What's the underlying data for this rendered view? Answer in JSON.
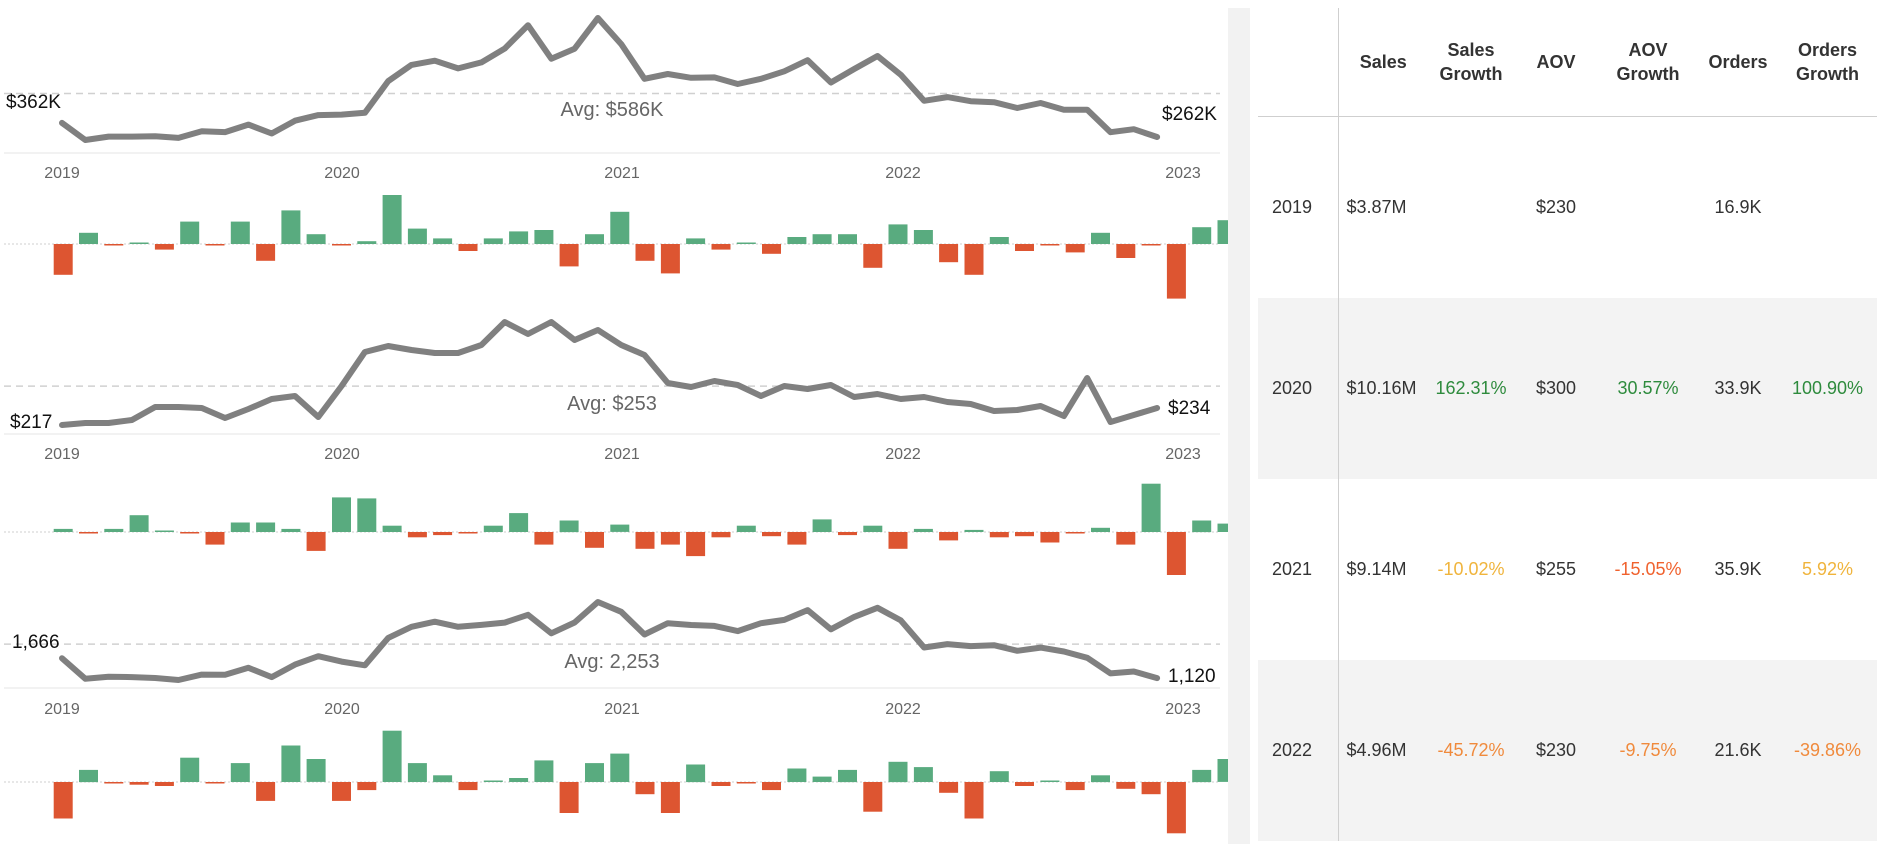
{
  "colors": {
    "line": "#808080",
    "positive_bar": "#59ab7f",
    "negative_bar": "#dd5531",
    "avg_line": "#d0d0d0"
  },
  "chart_data": [
    {
      "type": "line",
      "metric": "Sales",
      "x": [
        "2019-01",
        "2019-02",
        "2019-03",
        "2019-04",
        "2019-05",
        "2019-06",
        "2019-07",
        "2019-08",
        "2019-09",
        "2019-10",
        "2019-11",
        "2019-12",
        "2020-01",
        "2020-02",
        "2020-03",
        "2020-04",
        "2020-05",
        "2020-06",
        "2020-07",
        "2020-08",
        "2020-09",
        "2020-10",
        "2020-11",
        "2020-12",
        "2021-01",
        "2021-02",
        "2021-03",
        "2021-04",
        "2021-05",
        "2021-06",
        "2021-07",
        "2021-08",
        "2021-09",
        "2021-10",
        "2021-11",
        "2021-12",
        "2022-01",
        "2022-02",
        "2022-03",
        "2022-04",
        "2022-05",
        "2022-06",
        "2022-07",
        "2022-08",
        "2022-09",
        "2022-10",
        "2022-11",
        "2022-12"
      ],
      "values": [
        362,
        241,
        265,
        265,
        268,
        256,
        303,
        297,
        350,
        287,
        377,
        417,
        420,
        433,
        657,
        771,
        801,
        746,
        789,
        886,
        1051,
        815,
        885,
        1102,
        918,
        673,
        707,
        680,
        683,
        636,
        673,
        726,
        804,
        647,
        742,
        834,
        701,
        518,
        544,
        515,
        508,
        467,
        502,
        454,
        455,
        296,
        317,
        262
      ],
      "x_ticks": [
        "2019",
        "2020",
        "2021",
        "2022",
        "2023"
      ],
      "avg_label": "Avg: $586K",
      "start_label": "$362K",
      "end_label": "$262K"
    },
    {
      "type": "bar",
      "metric": "Sales month-over-month change",
      "values": [
        -2.2,
        0.8,
        -0.1,
        0.1,
        -0.4,
        1.6,
        -0.1,
        1.6,
        -1.2,
        2.4,
        0.7,
        -0.1,
        0.2,
        3.5,
        1.1,
        0.4,
        -0.5,
        0.4,
        0.9,
        1.0,
        -1.6,
        0.7,
        2.3,
        -1.2,
        -2.1,
        0.4,
        -0.4,
        0.1,
        -0.7,
        0.5,
        0.7,
        0.7,
        -1.7,
        1.4,
        1.0,
        -1.3,
        -2.2,
        0.5,
        -0.5,
        -0.1,
        -0.6,
        0.8,
        -1.0,
        -0.1,
        -3.9,
        1.2,
        1.7
      ]
    },
    {
      "type": "line",
      "metric": "AOV",
      "x": [
        "2019-01",
        "2019-02",
        "2019-03",
        "2019-04",
        "2019-05",
        "2019-06",
        "2019-07",
        "2019-08",
        "2019-09",
        "2019-10",
        "2019-11",
        "2019-12",
        "2020-01",
        "2020-02",
        "2020-03",
        "2020-04",
        "2020-05",
        "2020-06",
        "2020-07",
        "2020-08",
        "2020-09",
        "2020-10",
        "2020-11",
        "2020-12",
        "2021-01",
        "2021-02",
        "2021-03",
        "2021-04",
        "2021-05",
        "2021-06",
        "2021-07",
        "2021-08",
        "2021-09",
        "2021-10",
        "2021-11",
        "2021-12",
        "2022-01",
        "2022-02",
        "2022-03",
        "2022-04",
        "2022-05",
        "2022-06",
        "2022-07",
        "2022-08",
        "2022-09",
        "2022-10",
        "2022-11",
        "2022-12"
      ],
      "values": [
        217,
        219,
        219,
        222,
        235,
        235,
        234,
        224,
        233,
        243,
        246,
        225,
        256,
        290,
        296,
        292,
        289,
        289,
        297,
        320,
        308,
        320,
        302,
        312,
        297,
        287,
        259,
        255,
        261,
        257,
        246,
        256,
        253,
        257,
        245,
        248,
        243,
        245,
        240,
        238,
        231,
        232,
        236,
        226,
        264,
        220,
        227,
        234
      ],
      "x_ticks": [
        "2019",
        "2020",
        "2021",
        "2022",
        "2023"
      ],
      "avg_label": "Avg: $253",
      "start_label": "$217",
      "end_label": "$234"
    },
    {
      "type": "bar",
      "metric": "AOV month-over-month change",
      "values": [
        0.3,
        -0.1,
        0.3,
        1.6,
        0.1,
        -0.1,
        -1.2,
        0.9,
        0.9,
        0.3,
        -1.8,
        3.3,
        3.2,
        0.6,
        -0.5,
        -0.3,
        -0.1,
        0.6,
        1.8,
        -1.2,
        1.1,
        -1.5,
        0.7,
        -1.6,
        -1.2,
        -2.3,
        -0.5,
        0.6,
        -0.4,
        -1.2,
        1.2,
        -0.3,
        0.6,
        -1.6,
        0.3,
        -0.8,
        0.2,
        -0.5,
        -0.4,
        -1.0,
        -0.1,
        0.4,
        -1.2,
        4.6,
        -4.1,
        1.1,
        0.8
      ]
    },
    {
      "type": "line",
      "metric": "Orders",
      "x": [
        "2019-01",
        "2019-02",
        "2019-03",
        "2019-04",
        "2019-05",
        "2019-06",
        "2019-07",
        "2019-08",
        "2019-09",
        "2019-10",
        "2019-11",
        "2019-12",
        "2020-01",
        "2020-02",
        "2020-03",
        "2020-04",
        "2020-05",
        "2020-06",
        "2020-07",
        "2020-08",
        "2020-09",
        "2020-10",
        "2020-11",
        "2020-12",
        "2021-01",
        "2021-02",
        "2021-03",
        "2021-04",
        "2021-05",
        "2021-06",
        "2021-07",
        "2021-08",
        "2021-09",
        "2021-10",
        "2021-11",
        "2021-12",
        "2022-01",
        "2022-02",
        "2022-03",
        "2022-04",
        "2022-05",
        "2022-06",
        "2022-07",
        "2022-08",
        "2022-09",
        "2022-10",
        "2022-11",
        "2022-12"
      ],
      "values": [
        1666,
        1103,
        1159,
        1148,
        1123,
        1067,
        1215,
        1209,
        1404,
        1146,
        1490,
        1723,
        1574,
        1472,
        2225,
        2532,
        2671,
        2530,
        2583,
        2646,
        2860,
        2353,
        2648,
        3213,
        2944,
        2320,
        2630,
        2581,
        2555,
        2412,
        2629,
        2720,
        2990,
        2461,
        2804,
        3053,
        2708,
        1962,
        2056,
        1999,
        2025,
        1871,
        1959,
        1852,
        1679,
        1249,
        1302,
        1120
      ],
      "x_ticks": [
        "2019",
        "2020",
        "2021",
        "2022",
        "2023"
      ],
      "avg_label": "Avg: 2,253",
      "start_label": "1,666",
      "end_label": "1,120"
    },
    {
      "type": "bar",
      "metric": "Orders month-over-month change",
      "values": [
        -2.7,
        0.9,
        -0.1,
        -0.2,
        -0.3,
        1.8,
        -0.1,
        1.4,
        -1.4,
        2.7,
        1.7,
        -1.4,
        -0.6,
        3.8,
        1.4,
        0.5,
        -0.6,
        0.1,
        0.3,
        1.6,
        -2.3,
        1.4,
        2.1,
        -0.9,
        -2.3,
        1.3,
        -0.3,
        -0.1,
        -0.6,
        1.0,
        0.4,
        0.9,
        -2.2,
        1.5,
        1.1,
        -0.8,
        -2.7,
        0.8,
        -0.3,
        0.1,
        -0.6,
        0.5,
        -0.5,
        -0.9,
        -3.8,
        0.9,
        1.7
      ]
    }
  ],
  "table": {
    "columns": [
      "",
      "Sales",
      "Sales\nGrowth",
      "AOV",
      "AOV\nGrowth",
      "Orders",
      "Orders\nGrowth"
    ],
    "rows": [
      {
        "year": "2019",
        "sales": "$3.87M",
        "sales_growth": "",
        "aov": "$230",
        "aov_growth": "",
        "orders": "16.9K",
        "orders_growth": ""
      },
      {
        "year": "2020",
        "sales": "$10.16M",
        "sales_growth": "162.31%",
        "aov": "$300",
        "aov_growth": "30.57%",
        "orders": "33.9K",
        "orders_growth": "100.90%"
      },
      {
        "year": "2021",
        "sales": "$9.14M",
        "sales_growth": "-10.02%",
        "aov": "$255",
        "aov_growth": "-15.05%",
        "orders": "35.9K",
        "orders_growth": "5.92%"
      },
      {
        "year": "2022",
        "sales": "$4.96M",
        "sales_growth": "-45.72%",
        "aov": "$230",
        "aov_growth": "-9.75%",
        "orders": "21.6K",
        "orders_growth": "-39.86%"
      }
    ]
  }
}
